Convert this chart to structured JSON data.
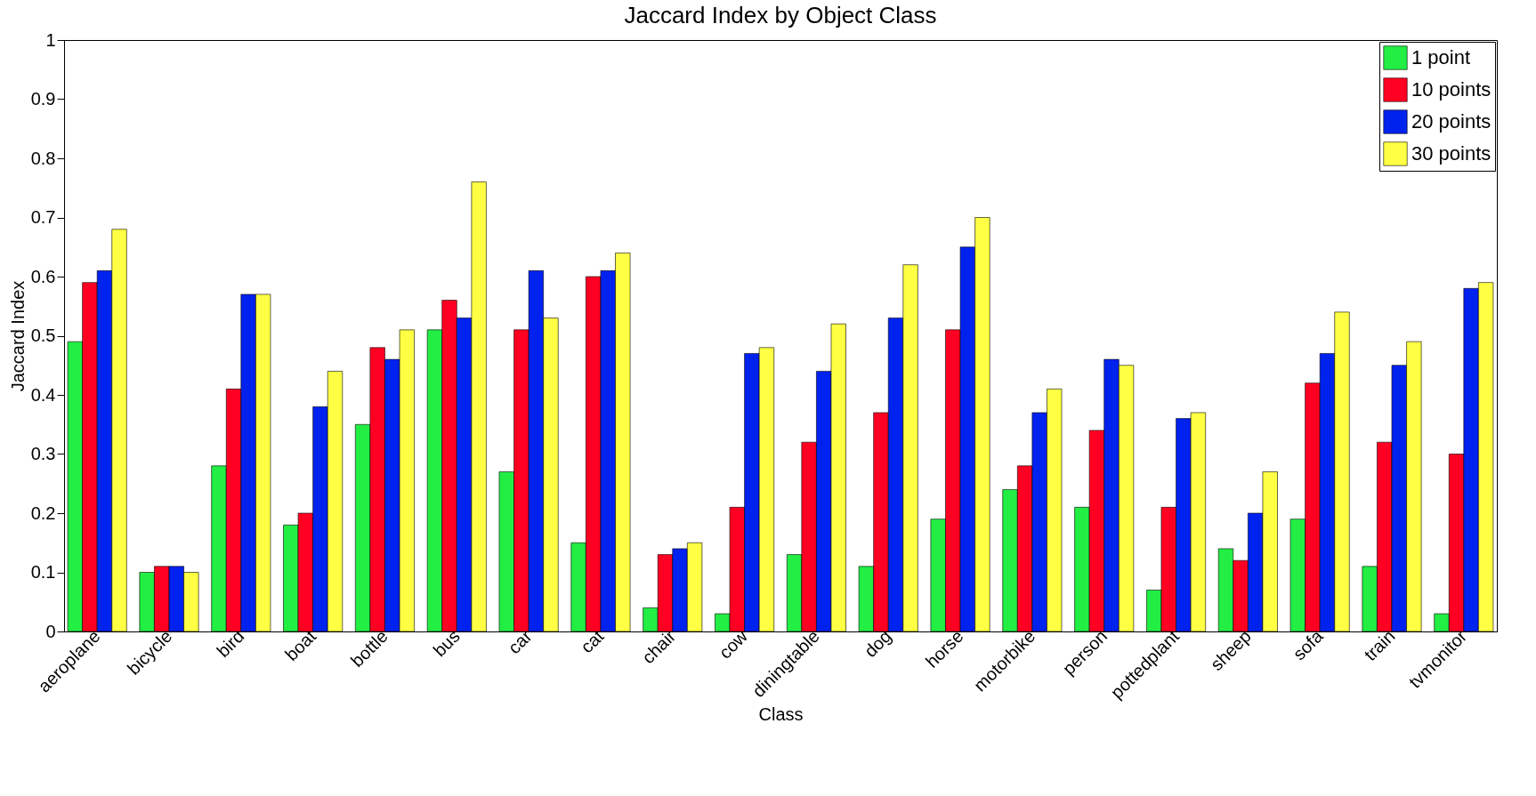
{
  "chart_data": {
    "type": "bar",
    "title": "Jaccard Index by Object Class",
    "xlabel": "Class",
    "ylabel": "Jaccard Index",
    "categories": [
      "aeroplane",
      "bicycle",
      "bird",
      "boat",
      "bottle",
      "bus",
      "car",
      "cat",
      "chair",
      "cow",
      "diningtable",
      "dog",
      "horse",
      "motorbike",
      "person",
      "pottedplant",
      "sheep",
      "sofa",
      "train",
      "tvmonitor"
    ],
    "series": [
      {
        "name": "1 point",
        "color": "#22ee44",
        "values": [
          0.49,
          0.1,
          0.28,
          0.18,
          0.35,
          0.51,
          0.27,
          0.15,
          0.04,
          0.03,
          0.13,
          0.11,
          0.19,
          0.24,
          0.21,
          0.07,
          0.14,
          0.19,
          0.11,
          0.03
        ]
      },
      {
        "name": "10 points",
        "color": "#ff0022",
        "values": [
          0.59,
          0.11,
          0.41,
          0.2,
          0.48,
          0.56,
          0.51,
          0.6,
          0.13,
          0.21,
          0.32,
          0.37,
          0.51,
          0.28,
          0.34,
          0.21,
          0.12,
          0.42,
          0.32,
          0.3
        ]
      },
      {
        "name": "20 points",
        "color": "#0022ee",
        "values": [
          0.61,
          0.11,
          0.57,
          0.38,
          0.46,
          0.53,
          0.61,
          0.61,
          0.14,
          0.47,
          0.44,
          0.53,
          0.65,
          0.37,
          0.46,
          0.36,
          0.2,
          0.47,
          0.45,
          0.58
        ]
      },
      {
        "name": "30 points",
        "color": "#ffff44",
        "values": [
          0.68,
          0.1,
          0.57,
          0.44,
          0.51,
          0.76,
          0.53,
          0.64,
          0.15,
          0.48,
          0.52,
          0.62,
          0.7,
          0.41,
          0.45,
          0.37,
          0.27,
          0.54,
          0.49,
          0.59
        ]
      }
    ],
    "ylim": [
      0,
      1
    ],
    "yticks": [
      0,
      0.1,
      0.2,
      0.3,
      0.4,
      0.5,
      0.6,
      0.7,
      0.8,
      0.9,
      1
    ],
    "legend": "top right"
  }
}
